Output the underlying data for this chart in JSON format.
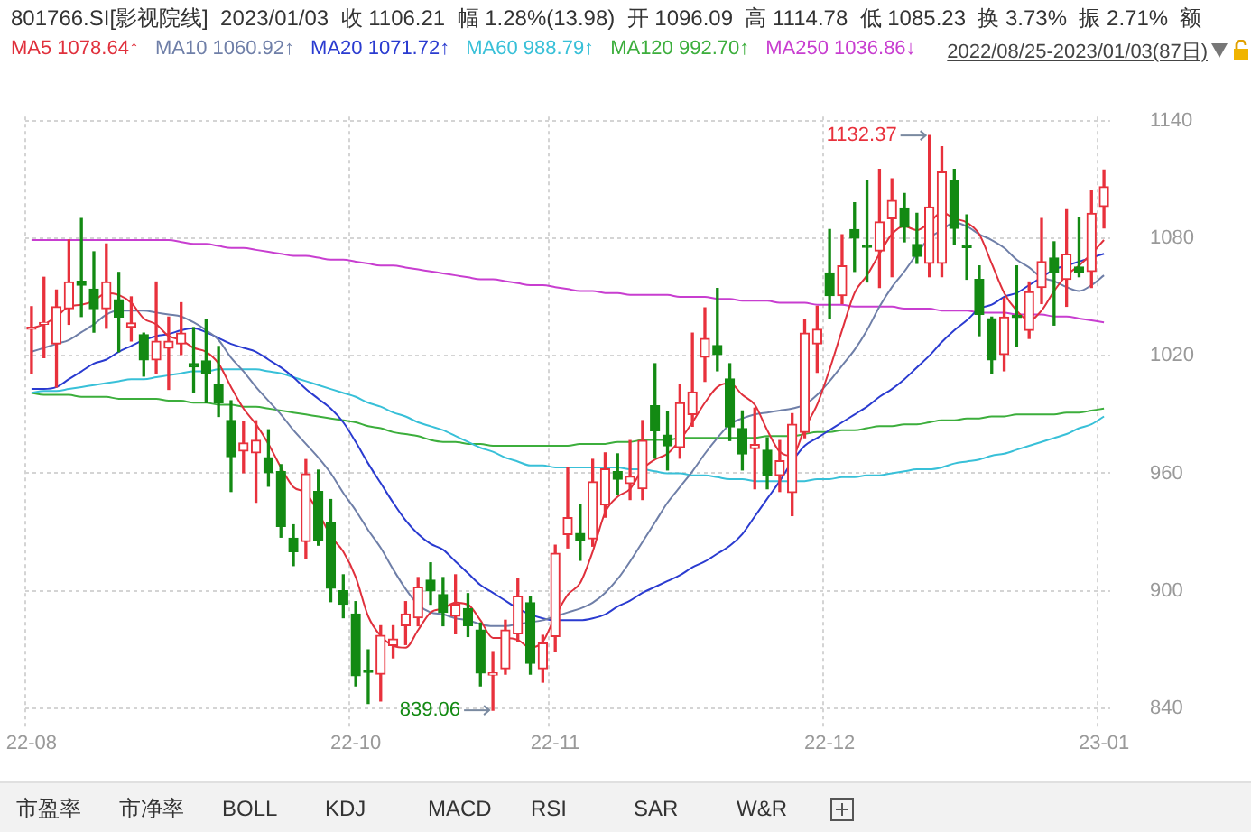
{
  "chart_data": {
    "type": "candlestick",
    "title": "801766.SI[影视院线]  2023/01/03  收 1106.21  幅 1.28%(13.98)  开 1096.09  高 1114.78  低 1085.23  换 3.73%  振 2.71%  额",
    "subtitle": "2022/08/25-2023/01/03(87日)",
    "categories": [
      "22-08",
      null,
      null,
      null,
      null,
      null,
      null,
      null,
      null,
      null,
      null,
      null,
      null,
      null,
      null,
      null,
      null,
      null,
      null,
      null,
      null,
      null,
      null,
      null,
      null,
      null,
      "22-10",
      null,
      null,
      null,
      null,
      null,
      null,
      null,
      null,
      null,
      null,
      null,
      null,
      null,
      null,
      null,
      "22-11",
      null,
      null,
      null,
      null,
      null,
      null,
      null,
      null,
      null,
      null,
      null,
      null,
      null,
      null,
      null,
      null,
      null,
      null,
      null,
      null,
      null,
      "22-12",
      null,
      null,
      null,
      null,
      null,
      null,
      null,
      null,
      null,
      null,
      null,
      null,
      null,
      null,
      null,
      null,
      null,
      null,
      null,
      null,
      null,
      "23-01"
    ],
    "series": [
      {
        "ohlc": [
          [
            1033.5,
            1045,
            1011,
            1034.5
          ],
          [
            1036,
            1060,
            1019,
            1036.5
          ],
          [
            1026,
            1053.5,
            1004,
            1045
          ],
          [
            1044,
            1079,
            1036,
            1057.6
          ],
          [
            1058,
            1090,
            1040,
            1056
          ],
          [
            1054,
            1073,
            1032,
            1044
          ],
          [
            1044,
            1077,
            1034,
            1057.6
          ],
          [
            1048.5,
            1062.5,
            1022,
            1039.7
          ],
          [
            1034.5,
            1050,
            1027.5,
            1036.7
          ],
          [
            1030.7,
            1031.5,
            1009.6,
            1017.8
          ],
          [
            1017.8,
            1057.6,
            1011,
            1027.4
          ],
          [
            1023.8,
            1039.7,
            1002.8,
            1027.4
          ],
          [
            1026,
            1047,
            1020.6,
            1031.5
          ],
          [
            1016,
            1034.3,
            1001.4,
            1014.3
          ],
          [
            1017.3,
            1038.4,
            996,
            1011
          ],
          [
            1005.5,
            1024.7,
            989,
            996
          ],
          [
            987,
            997,
            950.7,
            968.5
          ],
          [
            971.3,
            986.3,
            960.3,
            975.4
          ],
          [
            970.4,
            986.8,
            945.2,
            976.8
          ],
          [
            968,
            982.2,
            953.4,
            960.3
          ],
          [
            960.8,
            964.4,
            927.4,
            932.9
          ],
          [
            926.9,
            933.7,
            912.9,
            920
          ],
          [
            925.2,
            967,
            916.5,
            959.7
          ],
          [
            950.7,
            961.6,
            923.3,
            925.5
          ],
          [
            935.1,
            946.6,
            894.5,
            901.4
          ],
          [
            900,
            908.2,
            886.3,
            893.2
          ],
          [
            888.2,
            894.5,
            851.5,
            856.7
          ],
          [
            859.4,
            869.9,
            842.5,
            858.4
          ],
          [
            857.5,
            882.2,
            843.8,
            877.3
          ],
          [
            872.1,
            882.2,
            865.8,
            875.4
          ],
          [
            882.2,
            894.5,
            872.6,
            888.2
          ],
          [
            886.3,
            906.8,
            882.2,
            901.9
          ],
          [
            905.5,
            914.3,
            893.2,
            900
          ],
          [
            898.1,
            906.8,
            882.2,
            889
          ],
          [
            887.1,
            908.2,
            878.1,
            893.2
          ],
          [
            891,
            898.6,
            876.7,
            882.2
          ],
          [
            880,
            883.6,
            851.5,
            858.1
          ],
          [
            857,
            869,
            839.06,
            858.1
          ],
          [
            860.3,
            885,
            857.5,
            880
          ],
          [
            878.1,
            906.3,
            874,
            897.3
          ],
          [
            894,
            897.3,
            857.5,
            863
          ],
          [
            860.3,
            877.3,
            853.4,
            873.4
          ],
          [
            876.7,
            923.3,
            869,
            919.2
          ],
          [
            928.8,
            963,
            921.9,
            937.3
          ],
          [
            929.3,
            943.8,
            915.6,
            925.5
          ],
          [
            926.6,
            967.1,
            922.8,
            955.6
          ],
          [
            943.8,
            970.4,
            937.6,
            962.2
          ],
          [
            960.8,
            969.9,
            949.3,
            957
          ],
          [
            954.8,
            976.7,
            946.6,
            958.4
          ],
          [
            952.1,
            986.9,
            946.6,
            976.7
          ],
          [
            994.5,
            1015.9,
            967.7,
            981.7
          ],
          [
            979.5,
            991.3,
            961.7,
            974
          ],
          [
            973.2,
            1005.5,
            967.7,
            995.9
          ],
          [
            990,
            1031.5,
            984,
            1001.5
          ],
          [
            1019.2,
            1044.4,
            1006.9,
            1028.8
          ],
          [
            1025.2,
            1054.3,
            1012.3,
            1020.6
          ],
          [
            1008.2,
            1015.9,
            976.7,
            983.6
          ],
          [
            982.8,
            991.8,
            961.7,
            969.9
          ],
          [
            972.6,
            993.2,
            952.1,
            974.6
          ],
          [
            971.8,
            978.1,
            952.1,
            958.9
          ],
          [
            958.9,
            976.7,
            950.7,
            966.3
          ],
          [
            950.2,
            990.4,
            938.4,
            985
          ],
          [
            980.9,
            1038.4,
            978.1,
            1031.5
          ],
          [
            1026,
            1045.2,
            1011.5,
            1033.5
          ],
          [
            1062.2,
            1084.4,
            1038.9,
            1050.7
          ],
          [
            1050.7,
            1081.7,
            1046.6,
            1065.8
          ],
          [
            1084.4,
            1098.1,
            1063,
            1080
          ],
          [
            1075.6,
            1109.6,
            1057.6,
            1075.3
          ],
          [
            1073.5,
            1115.1,
            1054.8,
            1088.3
          ],
          [
            1089.9,
            1110.2,
            1060.3,
            1099.2
          ],
          [
            1095.4,
            1102.8,
            1078.1,
            1085.5
          ],
          [
            1076.7,
            1092.6,
            1067.1,
            1070.7
          ],
          [
            1067.1,
            1132.37,
            1060.3,
            1095.9
          ],
          [
            1067.1,
            1126.6,
            1060.3,
            1113.7
          ],
          [
            1109.6,
            1115.1,
            1076.7,
            1085
          ],
          [
            1075.4,
            1091.8,
            1059,
            1075.2
          ],
          [
            1058.9,
            1065.8,
            1030.2,
            1041.1
          ],
          [
            1038.9,
            1039.7,
            1011,
            1017.8
          ],
          [
            1020.6,
            1049.3,
            1012.3,
            1039.7
          ],
          [
            1040.6,
            1065.8,
            1024.7,
            1039.5
          ],
          [
            1032.9,
            1057.6,
            1028.8,
            1052.6
          ],
          [
            1054.8,
            1090,
            1046.6,
            1068
          ],
          [
            1069.9,
            1078.1,
            1035.6,
            1062.5
          ],
          [
            1058.9,
            1094.5,
            1045.2,
            1071.8
          ],
          [
            1065.2,
            1090.4,
            1060.3,
            1062.5
          ],
          [
            1063,
            1104.1,
            1054.8,
            1092.6
          ],
          [
            1096.09,
            1114.78,
            1085.23,
            1106.21
          ]
        ],
        "value_labels": [
          null,
          null,
          null,
          null,
          null,
          null,
          null,
          null,
          null,
          null,
          null,
          null,
          null,
          null,
          null,
          null,
          null,
          null,
          null,
          null,
          null,
          null,
          null,
          null,
          null,
          null,
          null,
          null,
          null,
          null,
          null,
          null,
          null,
          null,
          null,
          null,
          null,
          "839.06",
          null,
          null,
          null,
          null,
          null,
          null,
          null,
          null,
          null,
          null,
          null,
          null,
          null,
          null,
          null,
          null,
          null,
          null,
          null,
          null,
          null,
          null,
          null,
          null,
          null,
          null,
          null,
          null,
          null,
          null,
          null,
          null,
          null,
          null,
          "1132.37",
          null,
          null,
          null,
          null,
          null,
          null,
          null,
          null,
          null,
          null,
          null,
          null,
          null,
          null
        ]
      },
      {
        "type": "line",
        "name": "MA5 1078.64↑",
        "color": "#e0303c",
        "values": [
          1034,
          1036,
          1040,
          1045,
          1046,
          1048,
          1052,
          1051,
          1047,
          1039,
          1036,
          1030,
          1028,
          1024,
          1022,
          1016,
          1004,
          993,
          985,
          975,
          963,
          953,
          950,
          940,
          928,
          920,
          907,
          887,
          877,
          872,
          871,
          880,
          889,
          891,
          894,
          893,
          885,
          876,
          876,
          875,
          871,
          874,
          887,
          898,
          904,
          920,
          940,
          948,
          952,
          962,
          967,
          970,
          977,
          986,
          996,
          1004,
          1006,
          1000,
          995,
          982,
          971,
          969,
          983,
          995,
          1013,
          1033,
          1052,
          1061,
          1072,
          1082,
          1086,
          1084,
          1088,
          1093,
          1090,
          1088,
          1082,
          1067,
          1052,
          1043,
          1038,
          1043,
          1053,
          1061,
          1066,
          1072,
          1079
        ]
      },
      {
        "type": "line",
        "name": "MA10 1060.92↑",
        "color": "#6f7fa8",
        "values": [
          1022,
          1024,
          1026,
          1028,
          1032,
          1036,
          1041,
          1043,
          1043,
          1043,
          1042,
          1041,
          1040,
          1037,
          1033,
          1028,
          1019,
          1012,
          1004,
          997,
          990,
          982,
          975,
          968,
          960,
          950,
          941,
          931,
          922,
          911,
          901,
          893,
          889,
          888,
          886,
          885,
          883,
          882,
          882,
          883,
          884,
          885,
          887,
          889,
          891,
          894,
          899,
          906,
          915,
          925,
          935,
          945,
          953,
          961,
          970,
          978,
          985,
          988,
          990,
          991,
          992,
          993,
          995,
          1000,
          1007,
          1015,
          1023,
          1033,
          1045,
          1055,
          1063,
          1072,
          1080,
          1084,
          1088,
          1086,
          1082,
          1079,
          1075,
          1069,
          1065,
          1060,
          1058,
          1055,
          1053,
          1056,
          1061
        ]
      },
      {
        "type": "line",
        "name": "MA20 1071.72↑",
        "color": "#2a3bd0",
        "values": [
          1003,
          1003,
          1004,
          1008,
          1012,
          1016,
          1018,
          1022,
          1025,
          1028,
          1030,
          1031,
          1033,
          1034,
          1032,
          1029,
          1026,
          1024,
          1022,
          1018,
          1014,
          1009,
          1003,
          998,
          993,
          986,
          976,
          965,
          955,
          945,
          936,
          929,
          924,
          921,
          915,
          909,
          903,
          899,
          895,
          891,
          888,
          886,
          885,
          885,
          885,
          886,
          888,
          892,
          895,
          899,
          902,
          905,
          908,
          912,
          915,
          919,
          923,
          929,
          938,
          947,
          956,
          966,
          974,
          978,
          982,
          986,
          990,
          994,
          999,
          1003,
          1008,
          1014,
          1020,
          1027,
          1033,
          1038,
          1044,
          1046,
          1050,
          1052,
          1056,
          1060,
          1064,
          1066,
          1068,
          1070,
          1072
        ]
      },
      {
        "type": "line",
        "name": "MA60 988.79↑",
        "color": "#38c0d8",
        "values": [
          1001,
          1002,
          1002,
          1003,
          1004,
          1005,
          1006,
          1007,
          1008,
          1008,
          1009,
          1010,
          1011,
          1012,
          1012,
          1013,
          1013,
          1013,
          1013,
          1012,
          1011,
          1009,
          1007,
          1005,
          1003,
          1001,
          999,
          996,
          994,
          991,
          989,
          986,
          984,
          982,
          979,
          976,
          973,
          971,
          968,
          966,
          964,
          964,
          963,
          963,
          963,
          963,
          963,
          963,
          962,
          962,
          961,
          960,
          960,
          959,
          959,
          958,
          957,
          957,
          956,
          956,
          956,
          956,
          956,
          957,
          957,
          958,
          958,
          959,
          959,
          960,
          961,
          962,
          962,
          963,
          965,
          966,
          967,
          969,
          970,
          972,
          974,
          976,
          978,
          980,
          983,
          985,
          989
        ]
      },
      {
        "type": "line",
        "name": "MA120 992.70↑",
        "color": "#3cae3c",
        "values": [
          1001,
          1000,
          1000,
          1000,
          999,
          999,
          999,
          998,
          998,
          998,
          998,
          997,
          997,
          996,
          996,
          995,
          995,
          994,
          994,
          993,
          992,
          991,
          990,
          989,
          988,
          987,
          986,
          984,
          983,
          981,
          980,
          979,
          977,
          976,
          976,
          975,
          975,
          974,
          974,
          974,
          974,
          974,
          974,
          974,
          975,
          975,
          975,
          976,
          976,
          977,
          977,
          977,
          978,
          978,
          978,
          978,
          978,
          978,
          978,
          979,
          979,
          979,
          980,
          981,
          981,
          982,
          982,
          983,
          984,
          984,
          985,
          985,
          986,
          987,
          987,
          988,
          988,
          989,
          989,
          990,
          990,
          990,
          990,
          991,
          991,
          992,
          993
        ]
      },
      {
        "type": "line",
        "name": "MA250 1036.86↓",
        "color": "#c83ed0",
        "values": [
          1079,
          1079,
          1079,
          1079,
          1079,
          1079,
          1079,
          1079,
          1079,
          1079,
          1079,
          1079,
          1078,
          1077,
          1077,
          1076,
          1075,
          1075,
          1074,
          1073,
          1072,
          1071,
          1071,
          1070,
          1069,
          1069,
          1068,
          1067,
          1066,
          1066,
          1065,
          1064,
          1063,
          1062,
          1061,
          1060,
          1059,
          1059,
          1058,
          1057,
          1056,
          1056,
          1055,
          1054,
          1053,
          1053,
          1052,
          1052,
          1051,
          1051,
          1051,
          1051,
          1050,
          1050,
          1050,
          1049,
          1049,
          1048,
          1048,
          1048,
          1047,
          1047,
          1047,
          1046,
          1046,
          1046,
          1045,
          1045,
          1045,
          1045,
          1044,
          1044,
          1044,
          1043,
          1043,
          1043,
          1042,
          1042,
          1042,
          1041,
          1041,
          1041,
          1040,
          1040,
          1039,
          1038,
          1037
        ]
      }
    ],
    "ylim": [
      830,
      1142
    ],
    "yticks": [
      840,
      900,
      960,
      1020,
      1080,
      1140
    ],
    "grid": true,
    "legend": "top left",
    "marker": "none",
    "line_style": "solid",
    "annotations": [
      "市盈率",
      "市净率",
      "BOLL",
      "KDJ",
      "MACD",
      "RSI",
      "SAR",
      "W&R"
    ]
  }
}
